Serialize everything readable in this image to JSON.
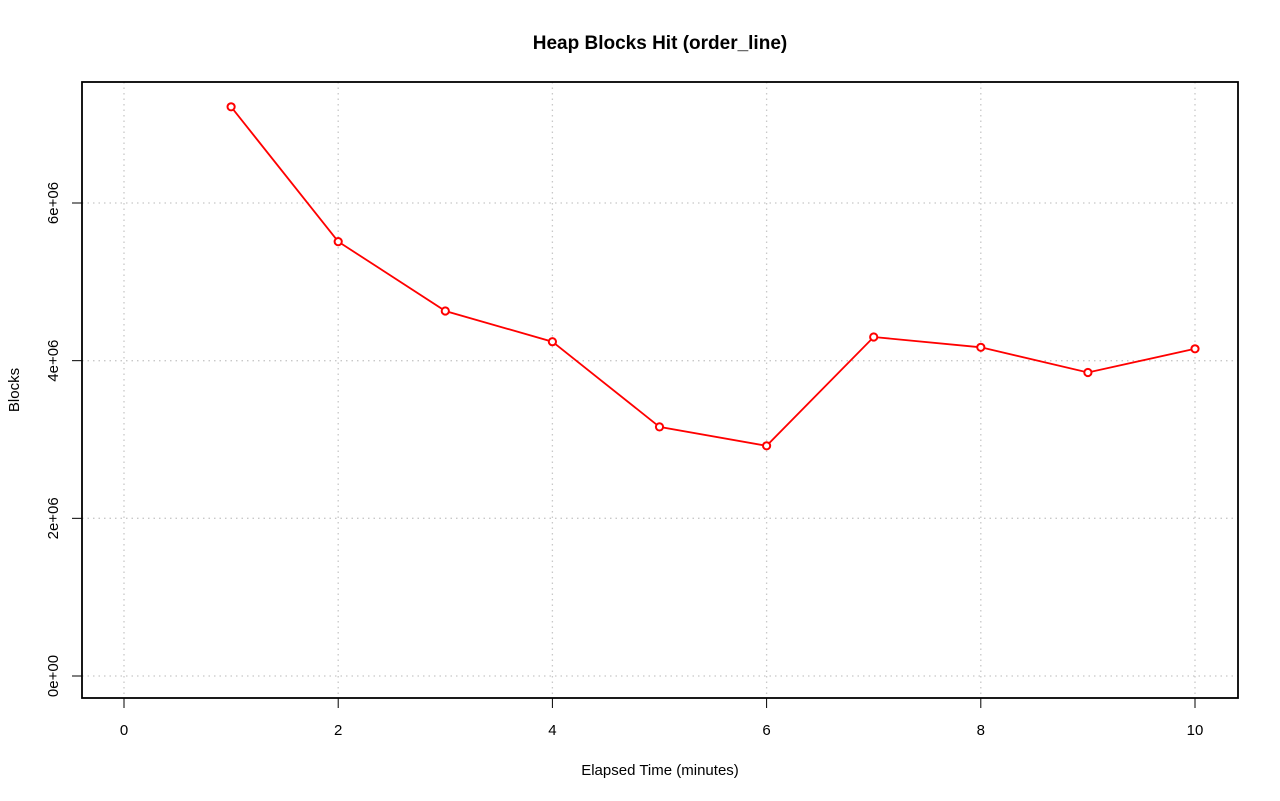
{
  "chart_data": {
    "type": "line",
    "title": "Heap Blocks Hit (order_line)",
    "xlabel": "Elapsed Time (minutes)",
    "ylabel": "Blocks",
    "xlim": [
      0,
      10
    ],
    "ylim": [
      0,
      7000000
    ],
    "x_ticks": [
      0,
      2,
      4,
      6,
      8,
      10
    ],
    "x_tick_labels": [
      "0",
      "2",
      "4",
      "6",
      "8",
      "10"
    ],
    "y_ticks": [
      0,
      2000000,
      4000000,
      6000000
    ],
    "y_tick_labels": [
      "0e+00",
      "2e+06",
      "4e+06",
      "6e+06"
    ],
    "grid": true,
    "series": [
      {
        "color": "#ff0000",
        "x": [
          1,
          2,
          3,
          4,
          5,
          6,
          7,
          8,
          9,
          10
        ],
        "values": [
          7220000,
          5510000,
          4630000,
          4240000,
          3160000,
          2920000,
          4300000,
          4170000,
          3850000,
          4150000
        ]
      }
    ]
  }
}
